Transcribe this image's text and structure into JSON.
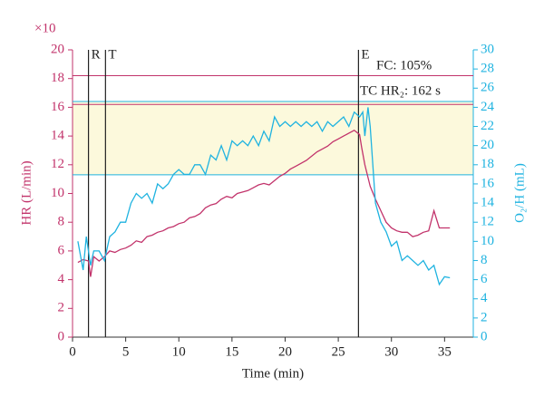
{
  "chart_data": {
    "type": "line",
    "multiplier_label": "×10",
    "xlabel": "Time (min)",
    "ylabel": "HR (L/min)",
    "y2label": "O₂/H (mL)",
    "xlim": [
      0,
      37.7
    ],
    "ylim": [
      0,
      20
    ],
    "y2lim": [
      0,
      30
    ],
    "xticks": [
      0,
      5,
      10,
      15,
      20,
      25,
      30,
      35
    ],
    "yticks": [
      0,
      2,
      4,
      6,
      8,
      10,
      12,
      14,
      16,
      18,
      20
    ],
    "y2ticks": [
      0,
      2,
      4,
      6,
      8,
      10,
      12,
      14,
      16,
      18,
      20,
      22,
      24,
      26,
      28,
      30
    ],
    "band": {
      "y": [
        11.3,
        16.4
      ],
      "color": "#fcf9dc"
    },
    "hlines": [
      {
        "y": 18.2,
        "color": "#c2336b"
      },
      {
        "y": 16.2,
        "color": "#c2336b"
      },
      {
        "y": 16.4,
        "color": "#1fb3e0"
      },
      {
        "y": 11.3,
        "color": "#1fb3e0"
      }
    ],
    "vlines": [
      {
        "x": 1.5,
        "label": "R"
      },
      {
        "x": 3.1,
        "label": "T"
      },
      {
        "x": 26.9,
        "label": "E"
      }
    ],
    "annotations": [
      "FC: 105%",
      "TC HR₂: 162 s"
    ],
    "series": [
      {
        "color": "#c2336b",
        "axis": "y",
        "x": [
          0.5,
          1,
          1.5,
          1.7,
          2,
          2.5,
          3,
          3.5,
          4,
          4.5,
          5,
          5.5,
          6,
          6.5,
          7,
          7.5,
          8,
          8.5,
          9,
          9.5,
          10,
          10.5,
          11,
          11.5,
          12,
          12.5,
          13,
          13.5,
          14,
          14.5,
          15,
          15.5,
          16,
          16.5,
          17,
          17.5,
          18,
          18.5,
          19,
          19.5,
          20,
          20.5,
          21,
          21.5,
          22,
          22.5,
          23,
          23.5,
          24,
          24.5,
          25,
          25.5,
          26,
          26.5,
          27,
          27.2,
          27.5,
          28,
          28.5,
          29,
          29.5,
          30,
          30.5,
          31,
          31.5,
          32,
          32.5,
          33,
          33.5,
          34,
          34.5,
          35,
          35.5
        ],
        "values": [
          5.2,
          5.4,
          5.3,
          4.2,
          5.6,
          5.3,
          5.6,
          6.0,
          5.9,
          6.1,
          6.2,
          6.4,
          6.7,
          6.6,
          7.0,
          7.1,
          7.3,
          7.4,
          7.6,
          7.7,
          7.9,
          8.0,
          8.3,
          8.4,
          8.6,
          9.0,
          9.2,
          9.3,
          9.6,
          9.8,
          9.7,
          10.0,
          10.1,
          10.2,
          10.4,
          10.6,
          10.7,
          10.6,
          10.9,
          11.2,
          11.4,
          11.7,
          11.9,
          12.1,
          12.3,
          12.6,
          12.9,
          13.1,
          13.3,
          13.6,
          13.8,
          14.0,
          14.2,
          14.4,
          14.1,
          13.2,
          12.0,
          10.5,
          9.6,
          8.8,
          8.0,
          7.6,
          7.4,
          7.3,
          7.3,
          7.0,
          7.1,
          7.3,
          7.4,
          8.8,
          7.6,
          7.6,
          7.6
        ]
      },
      {
        "color": "#1fb3e0",
        "axis": "y2",
        "x": [
          0.5,
          1,
          1.3,
          1.7,
          2,
          2.5,
          3,
          3.5,
          4,
          4.5,
          5,
          5.5,
          6,
          6.5,
          7,
          7.5,
          8,
          8.5,
          9,
          9.5,
          10,
          10.5,
          11,
          11.5,
          12,
          12.5,
          13,
          13.5,
          14,
          14.5,
          15,
          15.5,
          16,
          16.5,
          17,
          17.5,
          18,
          18.5,
          19,
          19.5,
          20,
          20.5,
          21,
          21.5,
          22,
          22.5,
          23,
          23.5,
          24,
          24.5,
          25,
          25.5,
          26,
          26.5,
          27,
          27.3,
          27.5,
          27.8,
          28,
          28.5,
          29,
          29.5,
          30,
          30.5,
          31,
          31.5,
          32,
          32.5,
          33,
          33.5,
          34,
          34.5,
          35,
          35.5
        ],
        "values": [
          10,
          7,
          10.5,
          7.5,
          9,
          9,
          8,
          10.5,
          11,
          12,
          12,
          14,
          15,
          14.5,
          15,
          14,
          16,
          15.5,
          16,
          17,
          17.5,
          17,
          17,
          18,
          18,
          17,
          19,
          18.5,
          20,
          18.5,
          20.5,
          20,
          20.5,
          20,
          21,
          20,
          21.5,
          20.5,
          23,
          22,
          22.5,
          22,
          22.5,
          22,
          22.5,
          22,
          22.5,
          21.5,
          22.5,
          22,
          22.5,
          23,
          22,
          23.5,
          23,
          23.5,
          21,
          24,
          22,
          14,
          12,
          11,
          9.5,
          10,
          8,
          8.5,
          8,
          7.5,
          8,
          7,
          7.5,
          5.5,
          6.3,
          6.2
        ]
      }
    ]
  }
}
